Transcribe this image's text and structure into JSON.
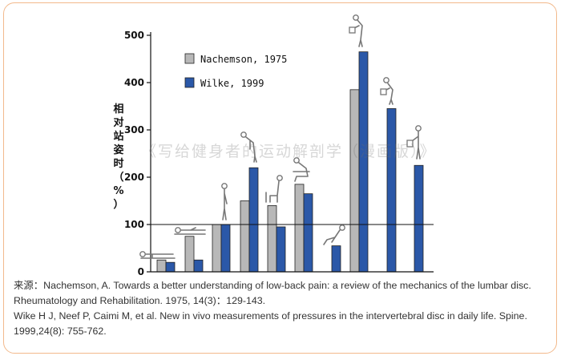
{
  "chart_data": {
    "type": "bar",
    "title": "",
    "xlabel": "",
    "ylabel": "相对站姿时（%）",
    "ylim": [
      0,
      500
    ],
    "yticks": [
      0,
      100,
      200,
      300,
      400,
      500
    ],
    "reference_line": 100,
    "grid": false,
    "legend_position": "top-center",
    "categories": [
      "lying-supine",
      "lying-side",
      "standing-relaxed",
      "standing-bent-forward",
      "sitting-relaxed",
      "sitting-bent-forward",
      "sitting-slouched",
      "lifting-weight-bent",
      "lifting-weight-close",
      "holding-weight-standing"
    ],
    "series": [
      {
        "name": "Nachemson, 1975",
        "color": "#b8b8b8",
        "values": [
          25,
          75,
          100,
          150,
          140,
          185,
          null,
          385,
          null,
          null
        ]
      },
      {
        "name": "Wilke, 1999",
        "color": "#2b58a8",
        "values": [
          20,
          25,
          100,
          220,
          95,
          165,
          55,
          465,
          345,
          225
        ]
      }
    ]
  },
  "watermark": "《写给健身者的运动解剖学（漫画版）》",
  "caption": {
    "line1": "来源：Nachemson, A. Towards a better understanding of low-back pain: a review of the mechanics of the lumbar disc. Rheumatology and Rehabilitation. 1975, 14(3)：129-143.",
    "line2": "Wike H J, Neef P, Caimi M, et al. New in vivo measurements of pressures in the intervertebral disc in daily life. Spine. 1999,24(8): 755-762."
  },
  "colors": {
    "frame_border": "#f2b98c",
    "nachemson": "#b8b8b8",
    "wilke": "#2b58a8"
  }
}
